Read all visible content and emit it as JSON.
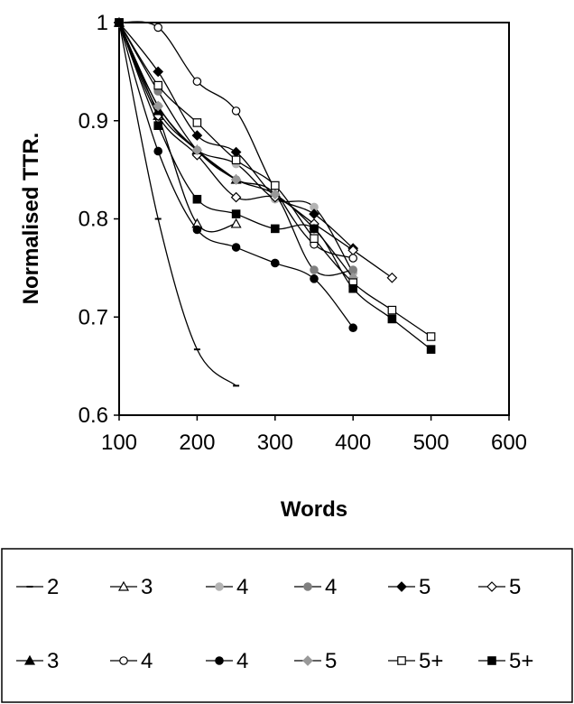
{
  "chart_data": {
    "type": "line",
    "title": "",
    "xlabel": "Words",
    "ylabel": "Normalised TTR.",
    "xlim": [
      100,
      600
    ],
    "ylim": [
      0.6,
      1.0
    ],
    "xticks": [
      "100",
      "200",
      "300",
      "400",
      "500",
      "600"
    ],
    "yticks": [
      "0.6",
      "0.7",
      "0.8",
      "0.9",
      "1"
    ],
    "grid": false,
    "legend_position": "bottom",
    "series": [
      {
        "name": "2",
        "marker": "dash",
        "color": "#000000",
        "x": [
          100,
          150,
          200,
          250
        ],
        "y": [
          1.0,
          0.8,
          0.667,
          0.63
        ]
      },
      {
        "name": "3",
        "marker": "triangle-open",
        "color": "#000000",
        "x": [
          100,
          150,
          200,
          250
        ],
        "y": [
          1.0,
          0.905,
          0.795,
          0.795
        ]
      },
      {
        "name": "4",
        "marker": "circle-filled",
        "color": "#b3b3b3",
        "x": [
          100,
          150,
          200,
          250,
          300,
          350,
          400
        ],
        "y": [
          1.0,
          0.915,
          0.87,
          0.856,
          0.82,
          0.812,
          0.745
        ]
      },
      {
        "name": "4",
        "marker": "circle-filled",
        "color": "#808080",
        "x": [
          100,
          150,
          200,
          250,
          300,
          350,
          400
        ],
        "y": [
          1.0,
          0.93,
          0.87,
          0.84,
          0.825,
          0.748,
          0.748
        ]
      },
      {
        "name": "5",
        "marker": "diamond-filled",
        "color": "#000000",
        "x": [
          100,
          150,
          200,
          250,
          300,
          350,
          400
        ],
        "y": [
          1.0,
          0.95,
          0.885,
          0.868,
          0.823,
          0.805,
          0.77
        ]
      },
      {
        "name": "5",
        "marker": "diamond-open",
        "color": "#000000",
        "x": [
          100,
          150,
          200,
          250,
          300,
          350,
          400,
          450
        ],
        "y": [
          1.0,
          0.905,
          0.865,
          0.822,
          0.822,
          0.795,
          0.768,
          0.74
        ]
      },
      {
        "name": "3",
        "marker": "triangle-filled",
        "color": "#000000",
        "x": [
          100,
          150,
          200,
          250
        ],
        "y": [
          1.0,
          0.91,
          0.87,
          0.84
        ]
      },
      {
        "name": "4",
        "marker": "circle-open",
        "color": "#000000",
        "x": [
          100,
          150,
          200,
          250,
          300,
          350,
          400
        ],
        "y": [
          1.0,
          0.995,
          0.94,
          0.91,
          0.83,
          0.774,
          0.76
        ]
      },
      {
        "name": "4",
        "marker": "circle-filled",
        "color": "#000000",
        "x": [
          100,
          150,
          200,
          250,
          300,
          350,
          400
        ],
        "y": [
          1.0,
          0.869,
          0.789,
          0.771,
          0.755,
          0.739,
          0.689
        ]
      },
      {
        "name": "5",
        "marker": "diamond-filled",
        "color": "#999999",
        "x": [
          100,
          150,
          200,
          250,
          300,
          350,
          400
        ],
        "y": [
          1.0,
          0.915,
          0.87,
          0.84,
          0.825,
          0.79,
          0.74
        ]
      },
      {
        "name": "5+",
        "marker": "square-open",
        "color": "#000000",
        "x": [
          100,
          150,
          200,
          250,
          300,
          350,
          400,
          450,
          500
        ],
        "y": [
          1.0,
          0.936,
          0.898,
          0.86,
          0.834,
          0.78,
          0.735,
          0.707,
          0.68
        ]
      },
      {
        "name": "5+",
        "marker": "square-filled",
        "color": "#000000",
        "x": [
          100,
          150,
          200,
          250,
          300,
          350,
          400,
          450,
          500
        ],
        "y": [
          1.0,
          0.895,
          0.82,
          0.805,
          0.79,
          0.79,
          0.729,
          0.698,
          0.667
        ]
      }
    ]
  }
}
